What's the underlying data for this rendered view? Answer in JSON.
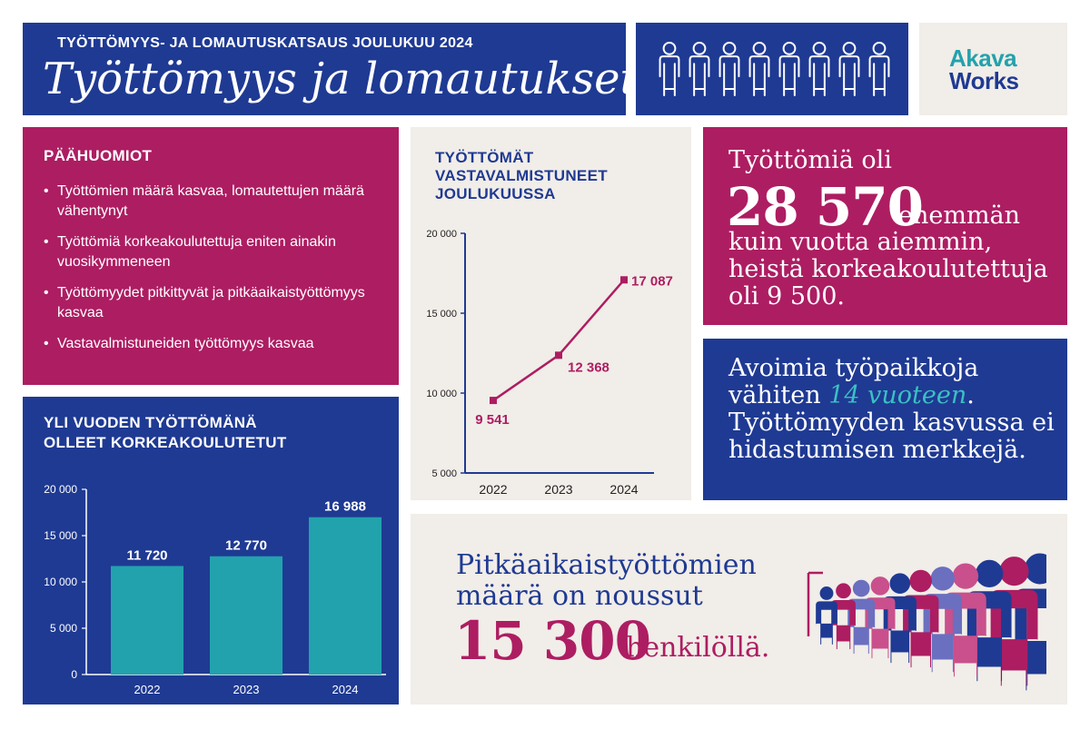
{
  "header": {
    "kicker": "TYÖTTÖMYYS- JA LOMAUTUSKATSAUS JOULUKUU 2024",
    "title": "Työttömyys ja lomautukset"
  },
  "people_icon": "person-icon",
  "logo": {
    "line1": "Akava",
    "line2": "Works"
  },
  "highlights": {
    "title": "PÄÄHUOMIOT",
    "items": [
      "Työttömien määrä kasvaa, lomautettujen määrä vähentynyt",
      "Työttömiä korkeakoulutettuja eniten ainakin vuosikymmeneen",
      "Työttömyydet pitkittyvät ja pitkäaikaistyöttömyys kasvaa",
      "Vastavalmistuneiden työttömyys kasvaa"
    ]
  },
  "stat_unemployed": {
    "line1": "Työttömiä oli",
    "number": "28 570",
    "after": "enemmän",
    "rest": "kuin vuotta aiemmin,\nheistä korkeakoulutettuja\noli 9 500."
  },
  "stat_jobs": {
    "part1": "Avoimia työpaikkoja vähiten ",
    "highlight": "14 vuoteen",
    "part2": ". Työttömyyden kasvussa ei hidastumisen merkkejä."
  },
  "stat_longterm": {
    "text": "Pitkäaikaistyöttömien\nmäärä on noussut",
    "number": "15 300",
    "after": "henkilöllä."
  },
  "chart_data": [
    {
      "type": "line",
      "title": "TYÖTTÖMÄT\nVASTAVALMISTUNEET\nJOULUKUUSSA",
      "categories": [
        "2022",
        "2023",
        "2024"
      ],
      "values": [
        9541,
        12368,
        17087
      ],
      "value_labels": [
        "9 541",
        "12 368",
        "17 087"
      ],
      "yticks": [
        "5 000",
        "10 000",
        "15 000",
        "20 000"
      ],
      "ytick_values": [
        5000,
        10000,
        15000,
        20000
      ],
      "ylim": [
        5000,
        20000
      ],
      "color": "#ad1d62",
      "axis_color": "#1f3a93"
    },
    {
      "type": "bar",
      "title": "YLI VUODEN TYÖTTÖMÄNÄ\nOLLEET KORKEAKOULUTETUT",
      "categories": [
        "2022",
        "2023",
        "2024"
      ],
      "values": [
        11720,
        12770,
        16988
      ],
      "value_labels": [
        "11 720",
        "12 770",
        "16 988"
      ],
      "yticks": [
        "0",
        "5 000",
        "10 000",
        "15 000",
        "20 000"
      ],
      "ytick_values": [
        0,
        5000,
        10000,
        15000,
        20000
      ],
      "ylim": [
        0,
        20000
      ],
      "color": "#22a2ad"
    }
  ]
}
